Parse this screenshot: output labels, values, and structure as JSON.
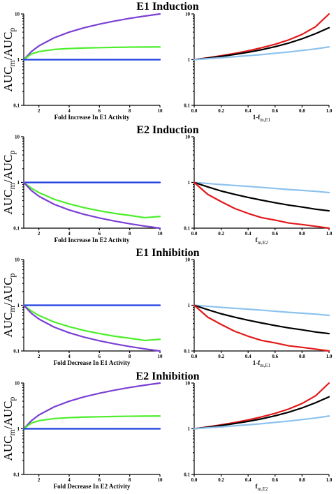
{
  "colors": {
    "purple": "#7b3fd4",
    "green": "#4cee2a",
    "blue": "#1f3ee0",
    "red": "#e21a1a",
    "black": "#000000",
    "lightblue": "#8cc2ee"
  },
  "ylabel": {
    "main": "AUC",
    "sub_m": "m",
    "slash": "/AUC",
    "sub_p": "p"
  },
  "chart_data": [
    {
      "panel": "E1 Induction left",
      "type": "line",
      "title": "E1 Induction",
      "xlabel": {
        "main": "Fold Increase In E1 Activity"
      },
      "xlim": [
        1,
        10
      ],
      "ylim": [
        0.1,
        10
      ],
      "yscale": "log",
      "xticks": [
        2,
        4,
        6,
        8,
        10
      ],
      "xtick_labels": [
        "2",
        "4",
        "6",
        "8",
        "10"
      ],
      "yticks": [
        0.1,
        1,
        10
      ],
      "ytick_labels": [
        "0.1",
        "1",
        "10"
      ],
      "x": [
        1,
        1.5,
        2,
        3,
        4,
        5,
        6,
        7,
        8,
        9,
        10
      ],
      "series": [
        {
          "color": "purple",
          "values": [
            1,
            1.5,
            2,
            3,
            4,
            5,
            6,
            7,
            8,
            9,
            10
          ]
        },
        {
          "color": "green",
          "values": [
            1,
            1.33,
            1.5,
            1.67,
            1.75,
            1.8,
            1.83,
            1.86,
            1.88,
            1.89,
            1.9
          ]
        },
        {
          "color": "blue",
          "values": [
            1,
            1,
            1,
            1,
            1,
            1,
            1,
            1,
            1,
            1,
            1
          ]
        }
      ]
    },
    {
      "panel": "E1 Induction right",
      "type": "line",
      "title": "",
      "xlabel": {
        "main": "1-f",
        "sub": "m,E1"
      },
      "xlim": [
        0,
        1
      ],
      "ylim": [
        0.1,
        10
      ],
      "yscale": "log",
      "xticks": [
        0,
        0.2,
        0.4,
        0.6,
        0.8,
        1
      ],
      "xtick_labels": [
        "0.0",
        "0.2",
        "0.4",
        "0.6",
        "0.8",
        "1.0"
      ],
      "yticks": [
        0.1,
        1,
        10
      ],
      "ytick_labels": [
        "0.1",
        "1",
        "10"
      ],
      "x": [
        0,
        0.1,
        0.2,
        0.3,
        0.4,
        0.5,
        0.6,
        0.7,
        0.8,
        0.9,
        1.0
      ],
      "series": [
        {
          "color": "red",
          "values": [
            1,
            1.1,
            1.22,
            1.37,
            1.56,
            1.82,
            2.17,
            2.7,
            3.57,
            5.26,
            10
          ]
        },
        {
          "color": "black",
          "values": [
            1,
            1.08,
            1.18,
            1.3,
            1.45,
            1.65,
            1.92,
            2.3,
            2.86,
            3.7,
            5.0
          ]
        },
        {
          "color": "lightblue",
          "values": [
            1,
            1.05,
            1.1,
            1.16,
            1.22,
            1.29,
            1.38,
            1.47,
            1.59,
            1.72,
            1.9
          ]
        }
      ]
    },
    {
      "panel": "E2 Induction left",
      "type": "line",
      "title": "E2 Induction",
      "xlabel": {
        "main": "Fold Increase In E2 Activity"
      },
      "xlim": [
        1,
        10
      ],
      "ylim": [
        0.1,
        10
      ],
      "yscale": "log",
      "xticks": [
        2,
        4,
        6,
        8,
        10
      ],
      "xtick_labels": [
        "2",
        "4",
        "6",
        "8",
        "10"
      ],
      "yticks": [
        0.1,
        1,
        10
      ],
      "ytick_labels": [
        "0.1",
        "1",
        "10"
      ],
      "x": [
        1,
        1.5,
        2,
        3,
        4,
        5,
        6,
        7,
        8,
        9,
        10
      ],
      "series": [
        {
          "color": "blue",
          "values": [
            1,
            1,
            1,
            1,
            1,
            1,
            1,
            1,
            1,
            1,
            1
          ]
        },
        {
          "color": "green",
          "values": [
            1,
            0.75,
            0.6,
            0.43,
            0.34,
            0.28,
            0.24,
            0.21,
            0.19,
            0.17,
            0.18
          ]
        },
        {
          "color": "purple",
          "values": [
            1,
            0.667,
            0.5,
            0.333,
            0.25,
            0.2,
            0.167,
            0.143,
            0.125,
            0.111,
            0.1
          ]
        }
      ]
    },
    {
      "panel": "E2 Induction right",
      "type": "line",
      "title": "",
      "xlabel": {
        "main": "f",
        "sub": "m,E2"
      },
      "xlim": [
        0,
        1
      ],
      "ylim": [
        0.1,
        10
      ],
      "yscale": "log",
      "xticks": [
        0,
        0.2,
        0.4,
        0.6,
        0.8,
        1
      ],
      "xtick_labels": [
        "0.0",
        "0.2",
        "0.4",
        "0.6",
        "0.8",
        "1.0"
      ],
      "yticks": [
        0.1,
        1,
        10
      ],
      "ytick_labels": [
        "0.1",
        "1",
        "10"
      ],
      "x": [
        0,
        0.1,
        0.2,
        0.3,
        0.4,
        0.5,
        0.6,
        0.7,
        0.8,
        0.9,
        1.0
      ],
      "series": [
        {
          "color": "lightblue",
          "values": [
            1,
            0.95,
            0.9,
            0.86,
            0.82,
            0.78,
            0.74,
            0.7,
            0.67,
            0.64,
            0.6
          ]
        },
        {
          "color": "black",
          "values": [
            1,
            0.8,
            0.65,
            0.55,
            0.47,
            0.41,
            0.36,
            0.32,
            0.29,
            0.26,
            0.24
          ]
        },
        {
          "color": "red",
          "values": [
            1,
            0.55,
            0.38,
            0.27,
            0.21,
            0.17,
            0.15,
            0.13,
            0.12,
            0.11,
            0.1
          ]
        }
      ]
    },
    {
      "panel": "E1 Inhibition left",
      "type": "line",
      "title": "E1 Inhibition",
      "xlabel": {
        "main": "Fold Decrease In E1 Activity"
      },
      "xlim": [
        1,
        10
      ],
      "ylim": [
        0.1,
        10
      ],
      "yscale": "log",
      "xticks": [
        2,
        4,
        6,
        8,
        10
      ],
      "xtick_labels": [
        "2",
        "4",
        "6",
        "8",
        "10"
      ],
      "yticks": [
        0.1,
        1,
        10
      ],
      "ytick_labels": [
        "0.1",
        "1",
        "10"
      ],
      "x": [
        1,
        1.5,
        2,
        3,
        4,
        5,
        6,
        7,
        8,
        9,
        10
      ],
      "series": [
        {
          "color": "blue",
          "values": [
            1,
            1,
            1,
            1,
            1,
            1,
            1,
            1,
            1,
            1,
            1
          ]
        },
        {
          "color": "green",
          "values": [
            1,
            0.75,
            0.6,
            0.43,
            0.34,
            0.28,
            0.24,
            0.21,
            0.19,
            0.17,
            0.18
          ]
        },
        {
          "color": "purple",
          "values": [
            1,
            0.667,
            0.5,
            0.333,
            0.25,
            0.2,
            0.167,
            0.143,
            0.125,
            0.111,
            0.1
          ]
        }
      ]
    },
    {
      "panel": "E1 Inhibition right",
      "type": "line",
      "title": "",
      "xlabel": {
        "main": "1-f",
        "sub": "m,E1"
      },
      "xlim": [
        0,
        1
      ],
      "ylim": [
        0.1,
        10
      ],
      "yscale": "log",
      "xticks": [
        0,
        0.2,
        0.4,
        0.6,
        0.8,
        1
      ],
      "xtick_labels": [
        "0.0",
        "0.2",
        "0.4",
        "0.6",
        "0.8",
        "1.0"
      ],
      "yticks": [
        0.1,
        1,
        10
      ],
      "ytick_labels": [
        "0.1",
        "1",
        "10"
      ],
      "x": [
        0,
        0.1,
        0.2,
        0.3,
        0.4,
        0.5,
        0.6,
        0.7,
        0.8,
        0.9,
        1.0
      ],
      "series": [
        {
          "color": "lightblue",
          "values": [
            1,
            0.95,
            0.9,
            0.86,
            0.82,
            0.78,
            0.74,
            0.7,
            0.67,
            0.64,
            0.6
          ]
        },
        {
          "color": "black",
          "values": [
            1,
            0.8,
            0.65,
            0.55,
            0.47,
            0.41,
            0.36,
            0.32,
            0.29,
            0.26,
            0.24
          ]
        },
        {
          "color": "red",
          "values": [
            1,
            0.55,
            0.38,
            0.27,
            0.21,
            0.17,
            0.15,
            0.13,
            0.12,
            0.11,
            0.1
          ]
        }
      ]
    },
    {
      "panel": "E2 Inhibition left",
      "type": "line",
      "title": "E2 Inhibition",
      "xlabel": {
        "main": "Fold Decrease In E2 Activity"
      },
      "xlim": [
        1,
        10
      ],
      "ylim": [
        0.1,
        10
      ],
      "yscale": "log",
      "xticks": [
        2,
        4,
        6,
        8,
        10
      ],
      "xtick_labels": [
        "2",
        "4",
        "6",
        "8",
        "10"
      ],
      "yticks": [
        0.1,
        1,
        10
      ],
      "ytick_labels": [
        "0.1",
        "1",
        "10"
      ],
      "x": [
        1,
        1.5,
        2,
        3,
        4,
        5,
        6,
        7,
        8,
        9,
        10
      ],
      "series": [
        {
          "color": "purple",
          "values": [
            1,
            1.5,
            2,
            3,
            4,
            5,
            6,
            7,
            8,
            9,
            10
          ]
        },
        {
          "color": "green",
          "values": [
            1,
            1.33,
            1.5,
            1.67,
            1.75,
            1.8,
            1.83,
            1.86,
            1.88,
            1.89,
            1.9
          ]
        },
        {
          "color": "blue",
          "values": [
            1,
            1,
            1,
            1,
            1,
            1,
            1,
            1,
            1,
            1,
            1
          ]
        }
      ]
    },
    {
      "panel": "E2 Inhibition right",
      "type": "line",
      "title": "",
      "xlabel": {
        "main": "f",
        "sub": "m,E2"
      },
      "xlim": [
        0,
        1
      ],
      "ylim": [
        0.1,
        10
      ],
      "yscale": "log",
      "xticks": [
        0,
        0.2,
        0.4,
        0.6,
        0.8,
        1
      ],
      "xtick_labels": [
        "0.0",
        "0.2",
        "0.4",
        "0.6",
        "0.8",
        "1.0"
      ],
      "yticks": [
        0.1,
        1,
        10
      ],
      "ytick_labels": [
        "0.1",
        "1",
        "10"
      ],
      "x": [
        0,
        0.1,
        0.2,
        0.3,
        0.4,
        0.5,
        0.6,
        0.7,
        0.8,
        0.9,
        1.0
      ],
      "series": [
        {
          "color": "red",
          "values": [
            1,
            1.1,
            1.22,
            1.37,
            1.56,
            1.82,
            2.17,
            2.7,
            3.57,
            5.26,
            10
          ]
        },
        {
          "color": "black",
          "values": [
            1,
            1.08,
            1.18,
            1.3,
            1.45,
            1.65,
            1.92,
            2.3,
            2.86,
            3.7,
            5.0
          ]
        },
        {
          "color": "lightblue",
          "values": [
            1,
            1.05,
            1.1,
            1.16,
            1.22,
            1.29,
            1.38,
            1.47,
            1.59,
            1.72,
            1.9
          ]
        }
      ]
    }
  ]
}
